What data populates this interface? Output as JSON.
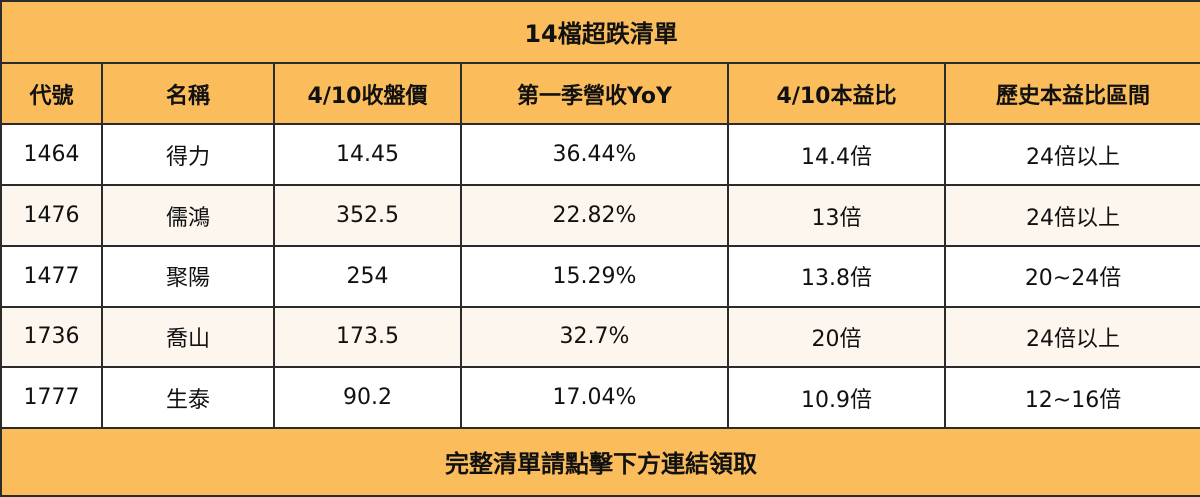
{
  "table": {
    "title": "14檔超跌清單",
    "header": [
      "代號",
      "名稱",
      "4/10收盤價",
      "第一季營收YoY",
      "4/10本益比",
      "歷史本益比區間"
    ],
    "rows": [
      [
        "1464",
        "得力",
        "14.45",
        "36.44%",
        "14.4倍",
        "24倍以上"
      ],
      [
        "1476",
        "儒鴻",
        "352.5",
        "22.82%",
        "13倍",
        "24倍以上"
      ],
      [
        "1477",
        "聚陽",
        "254",
        "15.29%",
        "13.8倍",
        "20~24倍"
      ],
      [
        "1736",
        "喬山",
        "173.5",
        "32.7%",
        "20倍",
        "24倍以上"
      ],
      [
        "1777",
        "生泰",
        "90.2",
        "17.04%",
        "10.9倍",
        "12~16倍"
      ]
    ],
    "footer": "完整清單請點擊下方連結領取"
  }
}
